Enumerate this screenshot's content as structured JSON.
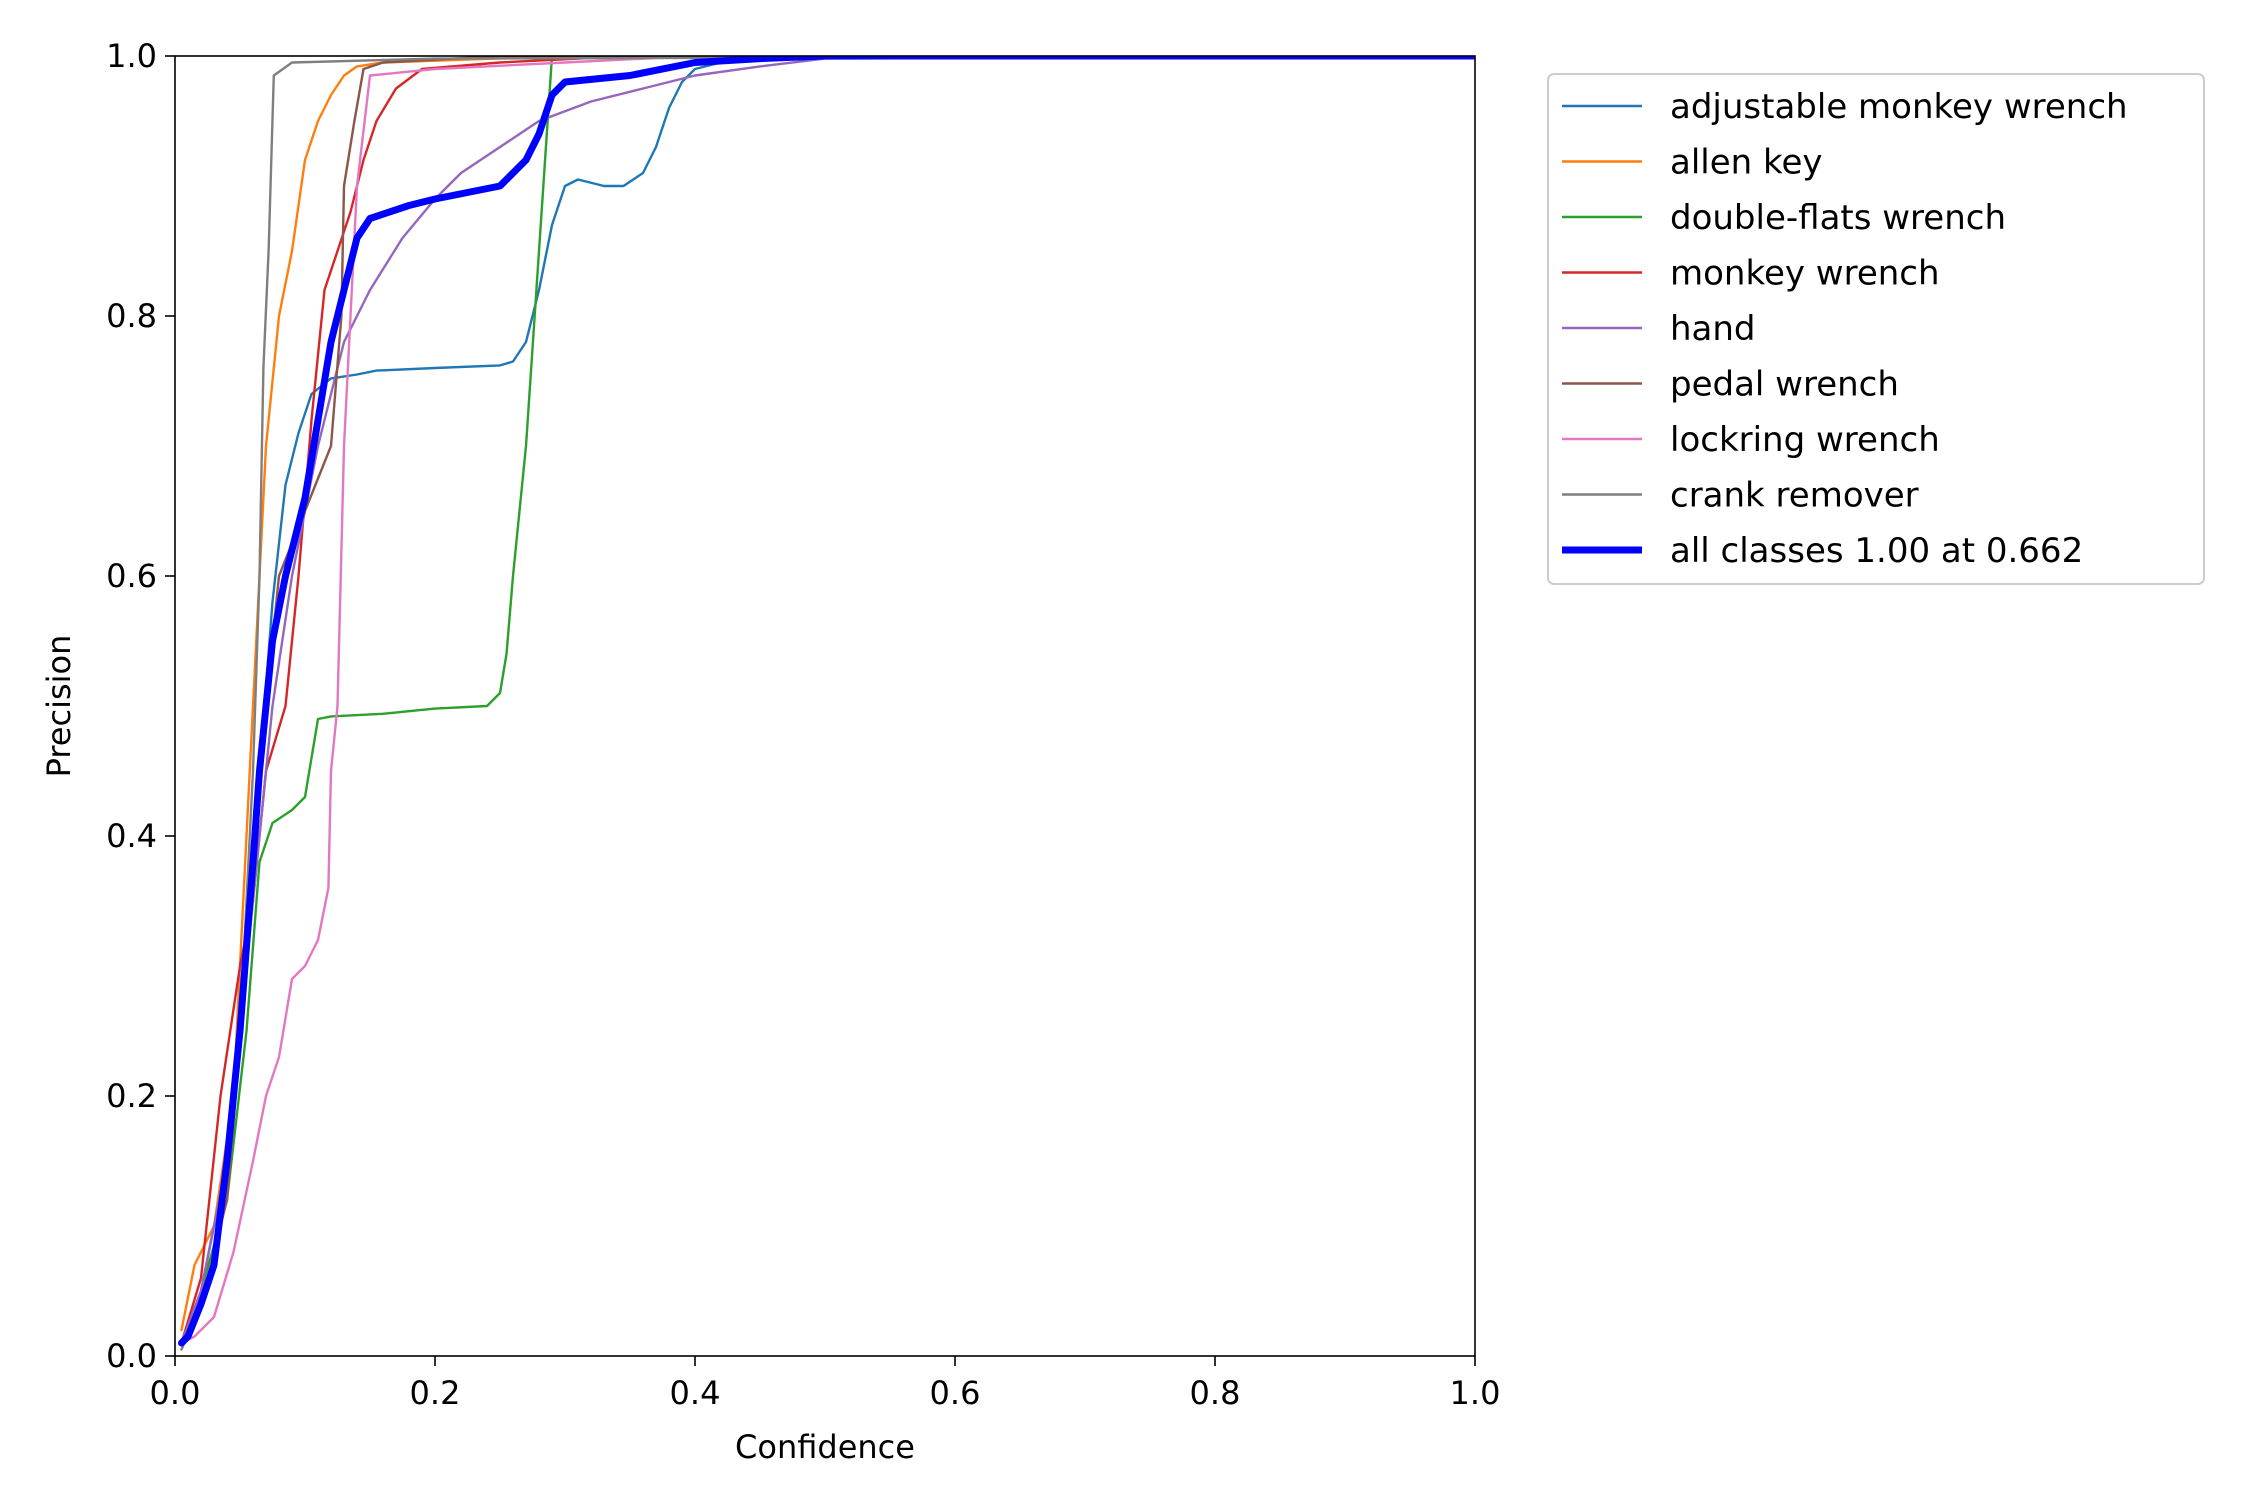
{
  "chart_data": {
    "type": "line",
    "xlabel": "Confidence",
    "ylabel": "Precision",
    "xlim": [
      0,
      1
    ],
    "ylim": [
      0,
      1
    ],
    "xticks": [
      "0.0",
      "0.2",
      "0.4",
      "0.6",
      "0.8",
      "1.0"
    ],
    "yticks": [
      "0.0",
      "0.2",
      "0.4",
      "0.6",
      "0.8",
      "1.0"
    ],
    "legend_position": "outside-top-right",
    "grid": false,
    "series": [
      {
        "name": "adjustable monkey wrench",
        "color": "#1f77b4",
        "width": "thin",
        "points": [
          [
            0.005,
            0.01
          ],
          [
            0.02,
            0.05
          ],
          [
            0.04,
            0.15
          ],
          [
            0.055,
            0.3
          ],
          [
            0.065,
            0.45
          ],
          [
            0.075,
            0.58
          ],
          [
            0.085,
            0.67
          ],
          [
            0.095,
            0.71
          ],
          [
            0.105,
            0.74
          ],
          [
            0.12,
            0.752
          ],
          [
            0.14,
            0.755
          ],
          [
            0.155,
            0.758
          ],
          [
            0.2,
            0.76
          ],
          [
            0.25,
            0.762
          ],
          [
            0.26,
            0.765
          ],
          [
            0.27,
            0.78
          ],
          [
            0.28,
            0.82
          ],
          [
            0.29,
            0.87
          ],
          [
            0.3,
            0.9
          ],
          [
            0.31,
            0.905
          ],
          [
            0.33,
            0.9
          ],
          [
            0.345,
            0.9
          ],
          [
            0.36,
            0.91
          ],
          [
            0.37,
            0.93
          ],
          [
            0.38,
            0.96
          ],
          [
            0.39,
            0.98
          ],
          [
            0.4,
            0.99
          ],
          [
            0.42,
            0.995
          ],
          [
            0.5,
            1.0
          ],
          [
            1.0,
            1.0
          ]
        ]
      },
      {
        "name": "allen key",
        "color": "#ff7f0e",
        "width": "thin",
        "points": [
          [
            0.005,
            0.02
          ],
          [
            0.015,
            0.07
          ],
          [
            0.03,
            0.1
          ],
          [
            0.045,
            0.2
          ],
          [
            0.055,
            0.4
          ],
          [
            0.06,
            0.5
          ],
          [
            0.065,
            0.6
          ],
          [
            0.07,
            0.7
          ],
          [
            0.075,
            0.75
          ],
          [
            0.08,
            0.8
          ],
          [
            0.09,
            0.85
          ],
          [
            0.1,
            0.92
          ],
          [
            0.11,
            0.95
          ],
          [
            0.12,
            0.97
          ],
          [
            0.13,
            0.985
          ],
          [
            0.14,
            0.992
          ],
          [
            0.16,
            0.995
          ],
          [
            0.3,
            1.0
          ],
          [
            1.0,
            1.0
          ]
        ]
      },
      {
        "name": "double-flats wrench",
        "color": "#2ca02c",
        "width": "thin",
        "points": [
          [
            0.005,
            0.01
          ],
          [
            0.02,
            0.05
          ],
          [
            0.04,
            0.12
          ],
          [
            0.055,
            0.25
          ],
          [
            0.065,
            0.38
          ],
          [
            0.075,
            0.41
          ],
          [
            0.09,
            0.42
          ],
          [
            0.1,
            0.43
          ],
          [
            0.11,
            0.49
          ],
          [
            0.12,
            0.492
          ],
          [
            0.16,
            0.494
          ],
          [
            0.2,
            0.498
          ],
          [
            0.24,
            0.5
          ],
          [
            0.25,
            0.51
          ],
          [
            0.255,
            0.54
          ],
          [
            0.26,
            0.6
          ],
          [
            0.27,
            0.7
          ],
          [
            0.28,
            0.85
          ],
          [
            0.29,
            1.0
          ],
          [
            1.0,
            1.0
          ]
        ]
      },
      {
        "name": "monkey wrench",
        "color": "#d62728",
        "width": "thin",
        "points": [
          [
            0.005,
            0.01
          ],
          [
            0.02,
            0.06
          ],
          [
            0.035,
            0.2
          ],
          [
            0.05,
            0.3
          ],
          [
            0.06,
            0.35
          ],
          [
            0.07,
            0.45
          ],
          [
            0.085,
            0.5
          ],
          [
            0.095,
            0.6
          ],
          [
            0.105,
            0.72
          ],
          [
            0.115,
            0.82
          ],
          [
            0.125,
            0.85
          ],
          [
            0.135,
            0.88
          ],
          [
            0.145,
            0.92
          ],
          [
            0.155,
            0.95
          ],
          [
            0.17,
            0.975
          ],
          [
            0.19,
            0.99
          ],
          [
            0.25,
            0.995
          ],
          [
            0.35,
            1.0
          ],
          [
            1.0,
            1.0
          ]
        ]
      },
      {
        "name": "hand",
        "color": "#9467bd",
        "width": "thin",
        "points": [
          [
            0.005,
            0.01
          ],
          [
            0.02,
            0.05
          ],
          [
            0.04,
            0.15
          ],
          [
            0.06,
            0.35
          ],
          [
            0.075,
            0.5
          ],
          [
            0.09,
            0.6
          ],
          [
            0.11,
            0.7
          ],
          [
            0.13,
            0.78
          ],
          [
            0.15,
            0.82
          ],
          [
            0.175,
            0.86
          ],
          [
            0.2,
            0.89
          ],
          [
            0.22,
            0.91
          ],
          [
            0.25,
            0.93
          ],
          [
            0.28,
            0.95
          ],
          [
            0.32,
            0.965
          ],
          [
            0.36,
            0.975
          ],
          [
            0.4,
            0.985
          ],
          [
            0.45,
            0.992
          ],
          [
            0.5,
            0.998
          ],
          [
            1.0,
            1.0
          ]
        ]
      },
      {
        "name": "pedal wrench",
        "color": "#8c564b",
        "width": "thin",
        "points": [
          [
            0.005,
            0.01
          ],
          [
            0.02,
            0.04
          ],
          [
            0.04,
            0.12
          ],
          [
            0.055,
            0.3
          ],
          [
            0.065,
            0.45
          ],
          [
            0.08,
            0.6
          ],
          [
            0.1,
            0.65
          ],
          [
            0.12,
            0.7
          ],
          [
            0.128,
            0.8
          ],
          [
            0.13,
            0.9
          ],
          [
            0.138,
            0.95
          ],
          [
            0.145,
            0.99
          ],
          [
            0.16,
            0.995
          ],
          [
            0.25,
            1.0
          ],
          [
            1.0,
            1.0
          ]
        ]
      },
      {
        "name": "lockring wrench",
        "color": "#e377c2",
        "width": "thin",
        "points": [
          [
            0.005,
            0.01
          ],
          [
            0.015,
            0.015
          ],
          [
            0.03,
            0.03
          ],
          [
            0.045,
            0.08
          ],
          [
            0.06,
            0.15
          ],
          [
            0.07,
            0.2
          ],
          [
            0.08,
            0.23
          ],
          [
            0.09,
            0.29
          ],
          [
            0.1,
            0.3
          ],
          [
            0.11,
            0.32
          ],
          [
            0.118,
            0.36
          ],
          [
            0.12,
            0.45
          ],
          [
            0.125,
            0.5
          ],
          [
            0.13,
            0.7
          ],
          [
            0.135,
            0.8
          ],
          [
            0.14,
            0.9
          ],
          [
            0.15,
            0.985
          ],
          [
            0.2,
            0.99
          ],
          [
            0.3,
            0.995
          ],
          [
            0.4,
            1.0
          ],
          [
            1.0,
            1.0
          ]
        ]
      },
      {
        "name": "crank remover",
        "color": "#7f7f7f",
        "width": "thin",
        "points": [
          [
            0.005,
            0.005
          ],
          [
            0.02,
            0.04
          ],
          [
            0.035,
            0.1
          ],
          [
            0.05,
            0.25
          ],
          [
            0.06,
            0.45
          ],
          [
            0.065,
            0.6
          ],
          [
            0.068,
            0.76
          ],
          [
            0.072,
            0.85
          ],
          [
            0.076,
            0.985
          ],
          [
            0.09,
            0.995
          ],
          [
            0.2,
            0.998
          ],
          [
            1.0,
            1.0
          ]
        ]
      },
      {
        "name": "all classes 1.00 at 0.662",
        "color": "#0000ff",
        "width": "thick",
        "points": [
          [
            0.005,
            0.01
          ],
          [
            0.01,
            0.015
          ],
          [
            0.02,
            0.04
          ],
          [
            0.03,
            0.07
          ],
          [
            0.04,
            0.15
          ],
          [
            0.05,
            0.25
          ],
          [
            0.06,
            0.38
          ],
          [
            0.065,
            0.45
          ],
          [
            0.075,
            0.55
          ],
          [
            0.085,
            0.6
          ],
          [
            0.1,
            0.66
          ],
          [
            0.11,
            0.72
          ],
          [
            0.12,
            0.78
          ],
          [
            0.13,
            0.82
          ],
          [
            0.14,
            0.86
          ],
          [
            0.15,
            0.875
          ],
          [
            0.18,
            0.885
          ],
          [
            0.2,
            0.89
          ],
          [
            0.25,
            0.9
          ],
          [
            0.27,
            0.92
          ],
          [
            0.28,
            0.94
          ],
          [
            0.29,
            0.97
          ],
          [
            0.3,
            0.98
          ],
          [
            0.35,
            0.985
          ],
          [
            0.4,
            0.995
          ],
          [
            0.45,
            0.998
          ],
          [
            0.5,
            1.0
          ],
          [
            1.0,
            1.0
          ]
        ]
      }
    ]
  }
}
